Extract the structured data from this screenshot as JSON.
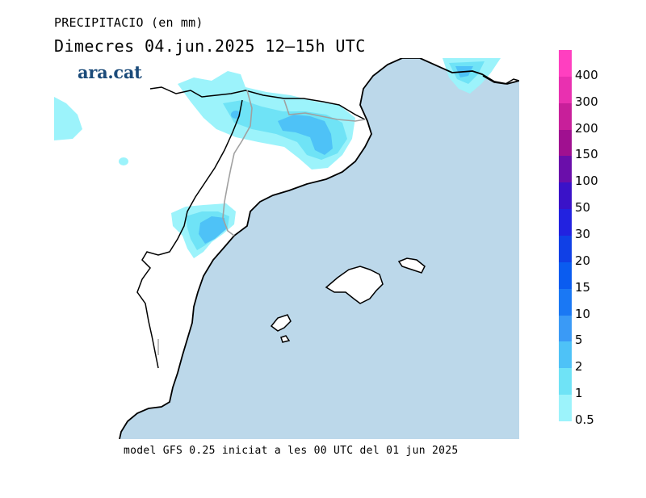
{
  "header": {
    "variable": "PRECIPITACIO (en mm)",
    "period": "Dimecres  04.jun.2025  12–15h UTC"
  },
  "brand": {
    "logo_text": "ara.cat"
  },
  "footer": {
    "model_note": "model GFS 0.25 iniciat a les 00 UTC del 01 jun 2025"
  },
  "colors": {
    "sea": "#bcd8ea",
    "land": "#ffffff",
    "coast": "#000000",
    "border": "#a0a0a0",
    "precip_0_5": "#9cf3fb",
    "precip_1": "#6fe3f6",
    "precip_2": "#4ec2f7"
  },
  "legend": {
    "bins": [
      {
        "label": "400",
        "color": "#ff3fc0"
      },
      {
        "label": "300",
        "color": "#e930b0"
      },
      {
        "label": "200",
        "color": "#c81f9a"
      },
      {
        "label": "150",
        "color": "#a01090"
      },
      {
        "label": "100",
        "color": "#6a0eaa"
      },
      {
        "label": "50",
        "color": "#3a12c8"
      },
      {
        "label": "30",
        "color": "#2222e0"
      },
      {
        "label": "20",
        "color": "#1040e6"
      },
      {
        "label": "15",
        "color": "#0a5cf0"
      },
      {
        "label": "10",
        "color": "#1a78f4"
      },
      {
        "label": "5",
        "color": "#3a9af6"
      },
      {
        "label": "2",
        "color": "#4ec2f7"
      },
      {
        "label": "1",
        "color": "#6fe3f6"
      },
      {
        "label": "0.5",
        "color": "#9cf3fb"
      }
    ]
  }
}
